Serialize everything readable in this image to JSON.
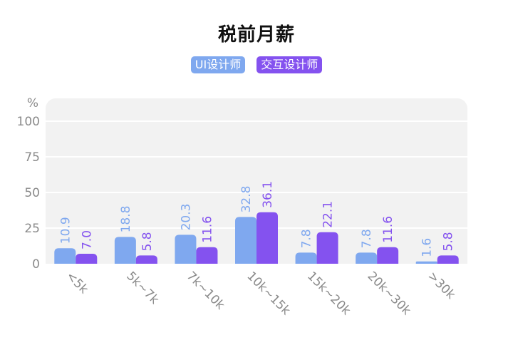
{
  "chart_data": {
    "type": "bar",
    "title": "税前月薪",
    "ylabel": "%",
    "ylim": [
      0,
      100
    ],
    "yticks": [
      0,
      25,
      50,
      75,
      100
    ],
    "grid": true,
    "legend_position": "top",
    "categories": [
      "<5k",
      "5k~7k",
      "7k~10k",
      "10k~15k",
      "15k~20k",
      "20k~30k",
      ">30k"
    ],
    "series": [
      {
        "name": "UI设计师",
        "color": "#7fa8ef",
        "values": [
          10.9,
          18.8,
          20.3,
          32.8,
          7.8,
          7.8,
          1.6
        ]
      },
      {
        "name": "交互设计师",
        "color": "#8452ef",
        "values": [
          7.0,
          5.8,
          11.6,
          36.1,
          22.1,
          11.6,
          5.8
        ]
      }
    ]
  }
}
